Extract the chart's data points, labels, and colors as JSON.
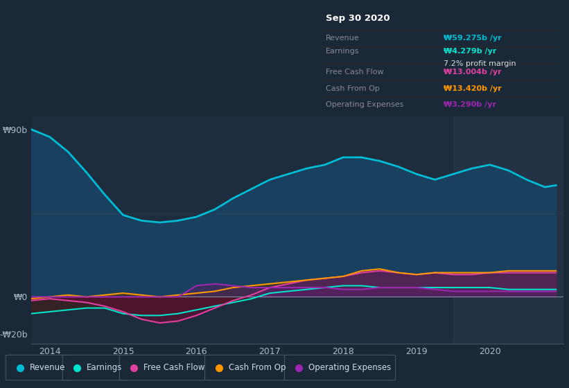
{
  "bg_color": "#1b2838",
  "plot_bg_color": "#1e2d3d",
  "highlight_bg": "#243245",
  "title_box": {
    "date": "Sep 30 2020",
    "rows": [
      {
        "label": "Revenue",
        "value": "₩59.275b /yr",
        "value_color": "#00bcd4",
        "sub": null
      },
      {
        "label": "Earnings",
        "value": "₩4.279b /yr",
        "value_color": "#00e5cc",
        "sub": "7.2% profit margin"
      },
      {
        "label": "Free Cash Flow",
        "value": "₩13.004b /yr",
        "value_color": "#e040a0",
        "sub": null
      },
      {
        "label": "Cash From Op",
        "value": "₩13.420b /yr",
        "value_color": "#ff9800",
        "sub": null
      },
      {
        "label": "Operating Expenses",
        "value": "₩3.290b /yr",
        "value_color": "#9c27b0",
        "sub": null
      }
    ]
  },
  "x": [
    2013.75,
    2014.0,
    2014.25,
    2014.5,
    2014.75,
    2015.0,
    2015.25,
    2015.5,
    2015.75,
    2016.0,
    2016.25,
    2016.5,
    2016.75,
    2017.0,
    2017.25,
    2017.5,
    2017.75,
    2018.0,
    2018.25,
    2018.5,
    2018.75,
    2019.0,
    2019.25,
    2019.5,
    2019.75,
    2020.0,
    2020.25,
    2020.5,
    2020.75,
    2020.9
  ],
  "revenue": [
    90,
    86,
    78,
    67,
    55,
    44,
    41,
    40,
    41,
    43,
    47,
    53,
    58,
    63,
    66,
    69,
    71,
    75,
    75,
    73,
    70,
    66,
    63,
    66,
    69,
    71,
    68,
    63,
    59,
    60
  ],
  "earnings": [
    -9,
    -8,
    -7,
    -6,
    -6,
    -9,
    -10,
    -10,
    -9,
    -7,
    -5,
    -3,
    -1,
    2,
    3,
    4,
    5,
    6,
    6,
    5,
    5,
    5,
    5,
    5,
    5,
    5,
    4,
    4,
    4,
    4
  ],
  "fcf": [
    -2,
    -1,
    -2,
    -3,
    -5,
    -8,
    -12,
    -14,
    -13,
    -10,
    -6,
    -2,
    1,
    5,
    7,
    9,
    10,
    11,
    13,
    14,
    13,
    12,
    13,
    12,
    12,
    13,
    13,
    13,
    13,
    13
  ],
  "cashop": [
    -1,
    0,
    1,
    0,
    1,
    2,
    1,
    0,
    1,
    2,
    3,
    5,
    6,
    7,
    8,
    9,
    10,
    11,
    14,
    15,
    13,
    12,
    13,
    13,
    13,
    13,
    14,
    14,
    14,
    14
  ],
  "opex": [
    0,
    0,
    0,
    0,
    0,
    0,
    0,
    0,
    0,
    6,
    7,
    6,
    5,
    5,
    5,
    5,
    5,
    4,
    4,
    5,
    5,
    5,
    4,
    3,
    3,
    3,
    3,
    3,
    3,
    3
  ],
  "ylim": [
    -25,
    97
  ],
  "yticks": [
    -20,
    0,
    90
  ],
  "ytick_labels": [
    "-₩20b",
    "₩0",
    "₩90b"
  ],
  "xticks": [
    2014,
    2015,
    2016,
    2017,
    2018,
    2019,
    2020
  ],
  "xlim": [
    2013.75,
    2021.0
  ],
  "highlight_x_start": 2019.5,
  "highlight_x_end": 2021.0,
  "legend_items": [
    {
      "label": "Revenue",
      "color": "#00bcd4"
    },
    {
      "label": "Earnings",
      "color": "#00e5cc"
    },
    {
      "label": "Free Cash Flow",
      "color": "#e040a0"
    },
    {
      "label": "Cash From Op",
      "color": "#ff9800"
    },
    {
      "label": "Operating Expenses",
      "color": "#9c27b0"
    }
  ],
  "revenue_fill_color": "#1a4060",
  "earnings_fill_pos": "#1a4050",
  "earnings_fill_neg": "#3a2020",
  "fcf_fill_pos": "#5a2060",
  "fcf_fill_neg": "#5a1030",
  "cashop_fill_pos": "#4a3010",
  "cashop_fill_neg": "#5a1030",
  "opex_fill_pos": "#4a2560"
}
